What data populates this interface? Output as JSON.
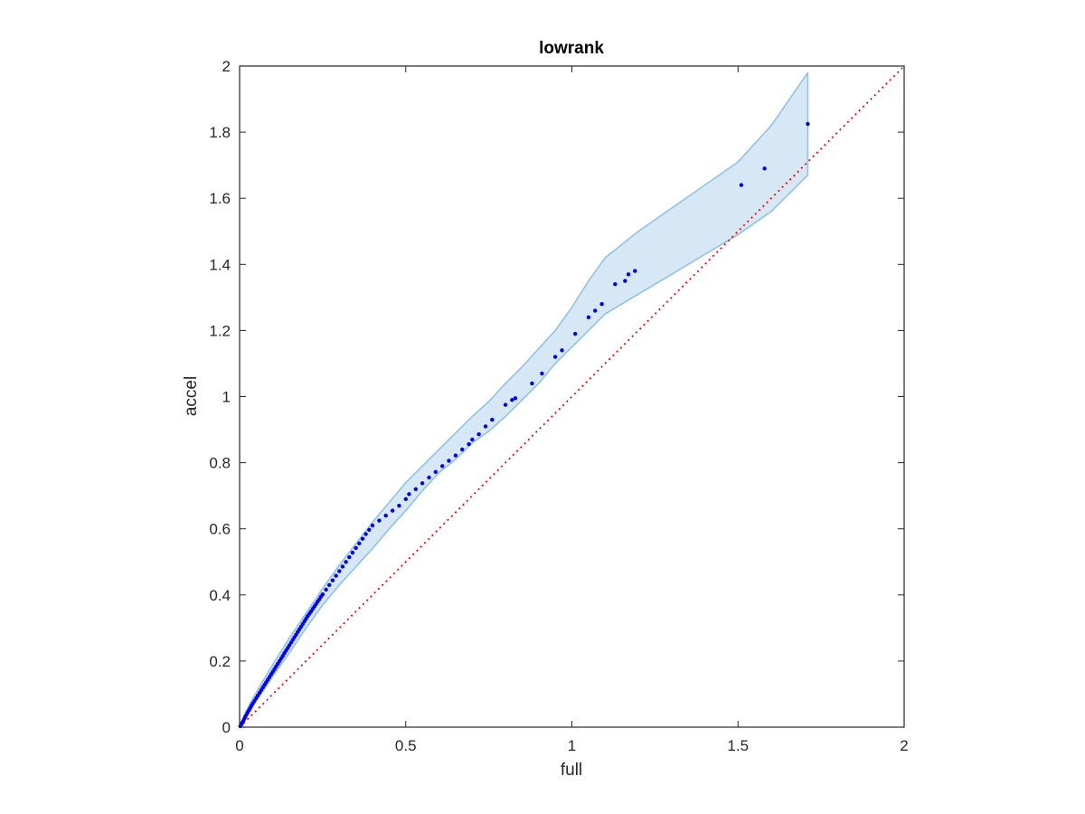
{
  "chart_data": {
    "type": "scatter",
    "title": "lowrank",
    "xlabel": "full",
    "ylabel": "accel",
    "xlim": [
      0,
      2
    ],
    "ylim": [
      0,
      2
    ],
    "xticks": [
      0,
      0.5,
      1,
      1.5,
      2
    ],
    "yticks": [
      0,
      0.2,
      0.4,
      0.6,
      0.8,
      1,
      1.2,
      1.4,
      1.6,
      1.8,
      2
    ],
    "xtick_labels": [
      "0",
      "0.5",
      "1",
      "1.5",
      "2"
    ],
    "ytick_labels": [
      "0",
      "0.2",
      "0.4",
      "0.6",
      "0.8",
      "1",
      "1.2",
      "1.4",
      "1.6",
      "1.8",
      "2"
    ],
    "grid": false,
    "legend": "none",
    "colors": {
      "points": "#0000ff",
      "band_fill": "#d6e8f5",
      "band_edge": "#8fc2e3",
      "reference_line": "#ff0000",
      "axes": "#262626"
    },
    "series": [
      {
        "type": "scatter",
        "x": [
          0.002,
          0.005,
          0.008,
          0.011,
          0.014,
          0.017,
          0.02,
          0.024,
          0.028,
          0.032,
          0.036,
          0.04,
          0.045,
          0.05,
          0.055,
          0.06,
          0.065,
          0.07,
          0.075,
          0.08,
          0.085,
          0.09,
          0.095,
          0.1,
          0.105,
          0.11,
          0.115,
          0.12,
          0.125,
          0.13,
          0.135,
          0.14,
          0.145,
          0.15,
          0.155,
          0.16,
          0.165,
          0.17,
          0.175,
          0.18,
          0.185,
          0.19,
          0.195,
          0.2,
          0.205,
          0.21,
          0.215,
          0.22,
          0.225,
          0.23,
          0.235,
          0.24,
          0.245,
          0.25,
          0.26,
          0.27,
          0.28,
          0.29,
          0.3,
          0.31,
          0.32,
          0.33,
          0.34,
          0.35,
          0.36,
          0.37,
          0.38,
          0.39,
          0.4,
          0.42,
          0.44,
          0.46,
          0.48,
          0.5,
          0.51,
          0.53,
          0.55,
          0.57,
          0.59,
          0.61,
          0.63,
          0.65,
          0.67,
          0.69,
          0.7,
          0.72,
          0.74,
          0.76,
          0.8,
          0.82,
          0.83,
          0.88,
          0.91,
          0.95,
          0.97,
          1.01,
          1.05,
          1.07,
          1.09,
          1.13,
          1.16,
          1.17,
          1.19,
          1.51,
          1.58,
          1.71
        ],
        "y": [
          0.003,
          0.008,
          0.013,
          0.019,
          0.025,
          0.031,
          0.037,
          0.044,
          0.051,
          0.058,
          0.065,
          0.072,
          0.08,
          0.088,
          0.096,
          0.104,
          0.112,
          0.12,
          0.128,
          0.136,
          0.144,
          0.152,
          0.16,
          0.168,
          0.176,
          0.184,
          0.192,
          0.2,
          0.208,
          0.216,
          0.224,
          0.232,
          0.24,
          0.248,
          0.256,
          0.264,
          0.272,
          0.28,
          0.288,
          0.296,
          0.304,
          0.312,
          0.32,
          0.328,
          0.336,
          0.343,
          0.35,
          0.358,
          0.365,
          0.372,
          0.38,
          0.387,
          0.395,
          0.402,
          0.416,
          0.43,
          0.444,
          0.458,
          0.472,
          0.486,
          0.5,
          0.514,
          0.528,
          0.542,
          0.556,
          0.57,
          0.584,
          0.597,
          0.61,
          0.625,
          0.64,
          0.655,
          0.67,
          0.69,
          0.705,
          0.72,
          0.738,
          0.755,
          0.772,
          0.79,
          0.806,
          0.822,
          0.84,
          0.856,
          0.87,
          0.886,
          0.91,
          0.93,
          0.975,
          0.99,
          0.995,
          1.04,
          1.07,
          1.12,
          1.14,
          1.19,
          1.24,
          1.26,
          1.28,
          1.34,
          1.35,
          1.37,
          1.38,
          1.64,
          1.69,
          1.825
        ]
      },
      {
        "type": "band",
        "x": [
          0,
          0.02,
          0.05,
          0.1,
          0.15,
          0.2,
          0.25,
          0.3,
          0.35,
          0.4,
          0.45,
          0.5,
          0.55,
          0.6,
          0.65,
          0.7,
          0.75,
          0.8,
          0.85,
          0.9,
          0.95,
          1.0,
          1.05,
          1.1,
          1.15,
          1.2,
          1.3,
          1.4,
          1.5,
          1.6,
          1.71
        ],
        "upper": [
          0,
          0.05,
          0.105,
          0.19,
          0.27,
          0.345,
          0.42,
          0.49,
          0.555,
          0.62,
          0.68,
          0.74,
          0.79,
          0.84,
          0.89,
          0.94,
          0.985,
          1.04,
          1.09,
          1.145,
          1.2,
          1.27,
          1.35,
          1.42,
          1.46,
          1.5,
          1.57,
          1.64,
          1.71,
          1.82,
          1.98
        ],
        "lower": [
          0,
          0.035,
          0.08,
          0.155,
          0.225,
          0.3,
          0.37,
          0.43,
          0.485,
          0.54,
          0.6,
          0.655,
          0.715,
          0.77,
          0.81,
          0.86,
          0.895,
          0.94,
          0.99,
          1.04,
          1.1,
          1.15,
          1.2,
          1.25,
          1.28,
          1.31,
          1.37,
          1.43,
          1.49,
          1.56,
          1.67
        ]
      },
      {
        "type": "line",
        "style": "dotted",
        "x": [
          0,
          2
        ],
        "y": [
          0,
          2
        ]
      }
    ]
  }
}
